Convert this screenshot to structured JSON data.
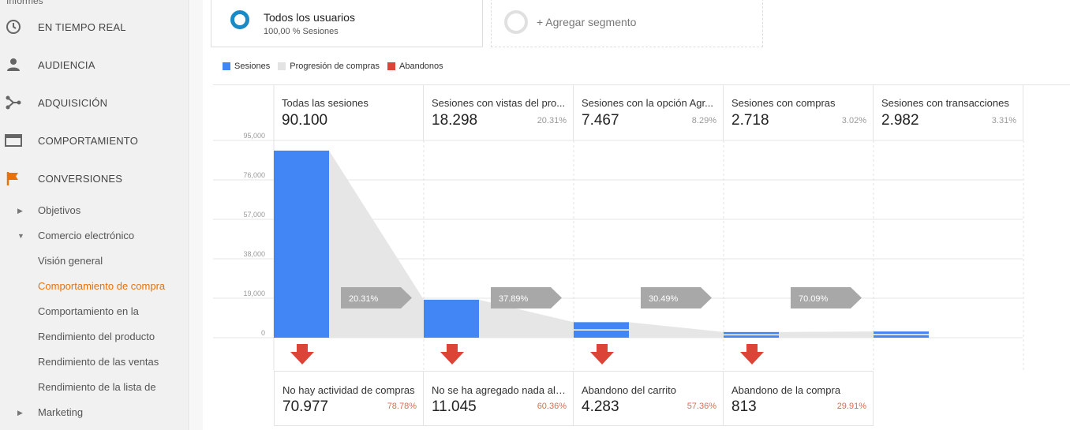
{
  "sidebar": {
    "header": "Informes",
    "main_items": [
      {
        "label": "EN TIEMPO REAL",
        "icon": "clock-icon"
      },
      {
        "label": "AUDIENCIA",
        "icon": "person-icon"
      },
      {
        "label": "ADQUISICIÓN",
        "icon": "acquisition-icon"
      },
      {
        "label": "COMPORTAMIENTO",
        "icon": "behavior-icon"
      },
      {
        "label": "CONVERSIONES",
        "icon": "flag-icon"
      }
    ],
    "sub_items": [
      {
        "label": "Objetivos",
        "expander": "▶"
      },
      {
        "label": "Comercio electrónico",
        "expander": "▼"
      },
      {
        "label": "Visión general"
      },
      {
        "label": "Comportamiento de compra"
      },
      {
        "label": "Comportamiento en la"
      },
      {
        "label": "Rendimiento del producto"
      },
      {
        "label": "Rendimiento de las ventas"
      },
      {
        "label": "Rendimiento de la lista de"
      },
      {
        "label": "Marketing",
        "expander": "▶"
      }
    ]
  },
  "segments": {
    "active_title": "Todos los usuarios",
    "active_sub": "100,00 % Sesiones",
    "add_label": "+ Agregar segmento"
  },
  "legend": {
    "sessions": "Sesiones",
    "progression": "Progresión de compras",
    "abandons": "Abandonos"
  },
  "colors": {
    "sessions": "#4285f4",
    "progression": "#e6e6e6",
    "abandons": "#db4437",
    "ring": "#1a8ac6",
    "active_nav": "#e8710a"
  },
  "chart_data": {
    "type": "bar",
    "ylim": [
      0,
      95000
    ],
    "yticks": [
      "95,000",
      "76,000",
      "57,000",
      "38,000",
      "19,000",
      "0"
    ],
    "stages": [
      {
        "label": "Todas las sesiones",
        "value_text": "90.100",
        "pct": "",
        "value": 90100
      },
      {
        "label": "Sesiones con vistas del pro...",
        "value_text": "18.298",
        "pct": "20.31%",
        "value": 18298
      },
      {
        "label": "Sesiones con la opción Agr...",
        "value_text": "7.467",
        "pct": "8.29%",
        "value": 7467
      },
      {
        "label": "Sesiones con compras",
        "value_text": "2.718",
        "pct": "3.02%",
        "value": 2718
      },
      {
        "label": "Sesiones con transacciones",
        "value_text": "2.982",
        "pct": "3.31%",
        "value": 2982
      }
    ],
    "progression": [
      "20.31%",
      "37.89%",
      "30.49%",
      "70.09%"
    ],
    "abandonments": [
      {
        "label": "No hay actividad de compras",
        "value_text": "70.977",
        "pct": "78.78%"
      },
      {
        "label": "No se ha agregado nada al ...",
        "value_text": "11.045",
        "pct": "60.36%"
      },
      {
        "label": "Abandono del carrito",
        "value_text": "4.283",
        "pct": "57.36%"
      },
      {
        "label": "Abandono de la compra",
        "value_text": "813",
        "pct": "29.91%"
      }
    ]
  }
}
